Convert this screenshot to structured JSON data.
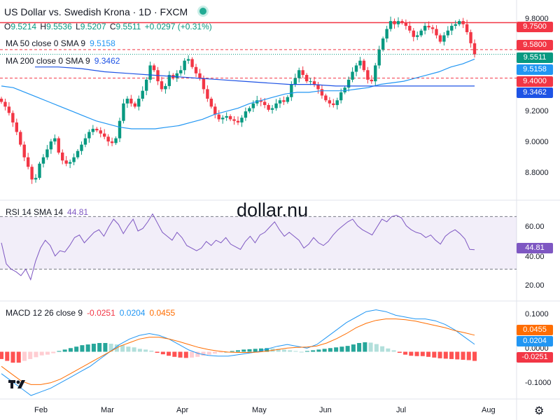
{
  "header": {
    "title": "US Dollar vs. Swedish Krona · 1D · FXCM",
    "ohlc": {
      "o_label": "O",
      "o": "9.5214",
      "h_label": "H",
      "h": "9.5536",
      "l_label": "L",
      "l": "9.5207",
      "c_label": "C",
      "c": "9.5511",
      "change": "+0.0297 (+0.31%)"
    }
  },
  "indicators": {
    "ma50": {
      "label": "MA 50 close 0 SMA 9",
      "value": "9.5158"
    },
    "ma200": {
      "label": "MA 200 close 0 SMA 9",
      "value": "9.3462"
    },
    "rsi": {
      "label": "RSI 14 SMA 14",
      "value": "44.81"
    },
    "macd": {
      "label": "MACD 12 26 close 9",
      "hist": "-0.0251",
      "macd": "0.0204",
      "signal": "0.0455"
    }
  },
  "watermark": "dollar.nu",
  "price_axis": {
    "ticks": [
      "9.8000",
      "9.2000",
      "9.0000",
      "8.8000"
    ]
  },
  "price_tags": [
    {
      "text": "9.7500",
      "color": "#f23645"
    },
    {
      "text": "9.5800",
      "color": "#f23645"
    },
    {
      "text": "9.5511",
      "color": "#089981"
    },
    {
      "text": "9.5158",
      "color": "#2196f3"
    },
    {
      "text": "9.4000",
      "color": "#f23645"
    },
    {
      "text": "9.3462",
      "color": "#1e53e5"
    }
  ],
  "rsi_axis": {
    "ticks": [
      "60.00",
      "40.00",
      "20.00"
    ],
    "tag": "44.81",
    "tag_color": "#7e57c2"
  },
  "macd_axis": {
    "ticks": [
      "0.1000",
      "0.0000",
      "-0.1000"
    ],
    "tags": [
      {
        "text": "0.0455",
        "color": "#ff6d00"
      },
      {
        "text": "0.0204",
        "color": "#2196f3"
      },
      {
        "text": "-0.0251",
        "color": "#f23645"
      }
    ]
  },
  "time_axis": {
    "months": [
      "Feb",
      "Mar",
      "Apr",
      "May",
      "Jun",
      "Jul",
      "Aug"
    ]
  },
  "colors": {
    "up": "#089981",
    "down": "#f23645",
    "ma50": "#2196f3",
    "ma200": "#1e53e5",
    "rsi": "#7e57c2",
    "signal": "#ff6d00"
  },
  "icons": {
    "logo": "tradingview-logo-icon",
    "settings": "gear-icon"
  },
  "chart_data": {
    "type": "candlestick",
    "symbol": "USDSEK",
    "interval": "1D",
    "ylim": [
      8.7,
      9.84
    ],
    "levels": [
      9.75,
      9.58,
      9.4
    ],
    "closes": [
      9.25,
      9.22,
      9.18,
      9.12,
      9.06,
      8.98,
      8.9,
      8.84,
      8.76,
      8.77,
      8.86,
      8.9,
      8.95,
      9.0,
      9.02,
      8.93,
      8.88,
      8.86,
      8.87,
      8.9,
      8.94,
      8.98,
      9.02,
      9.06,
      9.08,
      9.07,
      9.05,
      9.03,
      9.0,
      8.99,
      9.02,
      9.13,
      9.24,
      9.27,
      9.24,
      9.22,
      9.27,
      9.32,
      9.39,
      9.48,
      9.45,
      9.38,
      9.33,
      9.35,
      9.42,
      9.4,
      9.43,
      9.45,
      9.51,
      9.52,
      9.47,
      9.43,
      9.4,
      9.33,
      9.27,
      9.22,
      9.17,
      9.14,
      9.15,
      9.16,
      9.14,
      9.13,
      9.12,
      9.15,
      9.19,
      9.21,
      9.24,
      9.26,
      9.25,
      9.23,
      9.2,
      9.21,
      9.24,
      9.26,
      9.25,
      9.28,
      9.36,
      9.4,
      9.45,
      9.42,
      9.38,
      9.38,
      9.36,
      9.33,
      9.29,
      9.26,
      9.24,
      9.23,
      9.26,
      9.31,
      9.34,
      9.39,
      9.44,
      9.48,
      9.51,
      9.45,
      9.39,
      9.38,
      9.48,
      9.58,
      9.65,
      9.71,
      9.76,
      9.74,
      9.76,
      9.75,
      9.73,
      9.7,
      9.66,
      9.67,
      9.7,
      9.73,
      9.72,
      9.71,
      9.67,
      9.63,
      9.67,
      9.7,
      9.73,
      9.74,
      9.76,
      9.74,
      9.69,
      9.62,
      9.55
    ],
    "ma50": [
      9.35,
      9.34,
      9.31,
      9.28,
      9.25,
      9.22,
      9.19,
      9.16,
      9.13,
      9.11,
      9.09,
      9.08,
      9.08,
      9.08,
      9.09,
      9.1,
      9.12,
      9.14,
      9.17,
      9.19,
      9.21,
      9.24,
      9.26,
      9.28,
      9.3,
      9.31,
      9.31,
      9.32,
      9.32,
      9.32,
      9.33,
      9.34,
      9.36,
      9.37,
      9.38,
      9.4,
      9.42,
      9.44,
      9.47,
      9.49,
      9.52
    ],
    "ma200": [
      9.47,
      9.47,
      9.46,
      9.44,
      9.43,
      9.42,
      9.41,
      9.4,
      9.39,
      9.38,
      9.37,
      9.36,
      9.36,
      9.35,
      9.35,
      9.35,
      9.35,
      9.35,
      9.35,
      9.35
    ],
    "rsi": [
      50,
      34,
      30,
      28,
      25,
      30,
      22,
      36,
      46,
      52,
      48,
      40,
      44,
      43,
      48,
      54,
      56,
      50,
      54,
      58,
      60,
      55,
      62,
      68,
      64,
      57,
      63,
      68,
      59,
      61,
      66,
      72,
      65,
      58,
      55,
      52,
      58,
      54,
      48,
      46,
      44,
      46,
      51,
      48,
      52,
      50,
      54,
      49,
      47,
      45,
      51,
      55,
      50,
      56,
      58,
      62,
      66,
      60,
      55,
      58,
      55,
      52,
      46,
      49,
      54,
      50,
      48,
      51,
      56,
      60,
      63,
      66,
      68,
      63,
      60,
      58,
      56,
      62,
      68,
      66,
      70,
      71,
      69,
      63,
      60,
      58,
      57,
      54,
      56,
      52,
      49,
      55,
      58,
      60,
      57,
      53,
      45,
      44.81
    ],
    "macd_hist": [
      -0.02,
      -0.025,
      -0.03,
      -0.03,
      -0.025,
      -0.02,
      -0.015,
      -0.01,
      -0.008,
      -0.004,
      0.002,
      0.006,
      0.01,
      0.014,
      0.018,
      0.02,
      0.022,
      0.024,
      0.024,
      0.022,
      0.02,
      0.018,
      0.014,
      0.012,
      0.008,
      0.006,
      0.003,
      -0.003,
      -0.007,
      -0.011,
      -0.014,
      -0.016,
      -0.017,
      -0.016,
      -0.014,
      -0.011,
      -0.008,
      -0.005,
      -0.002,
      0.0,
      0.002,
      0.004,
      0.006,
      0.007,
      0.008,
      0.009,
      0.01,
      0.009,
      0.008,
      0.006,
      0.004,
      0.002,
      0.0,
      0.002,
      0.004,
      0.006,
      0.008,
      0.01,
      0.012,
      0.014,
      0.016,
      0.02,
      0.024,
      0.026,
      0.025,
      0.021,
      0.015,
      0.009,
      0.004,
      -0.003,
      -0.008,
      -0.011,
      -0.012,
      -0.012,
      -0.014,
      -0.016,
      -0.018,
      -0.019,
      -0.02,
      -0.021,
      -0.022,
      -0.023,
      -0.0251
    ],
    "macd_line": [
      -0.06,
      -0.08,
      -0.1,
      -0.12,
      -0.11,
      -0.1,
      -0.085,
      -0.07,
      -0.055,
      -0.04,
      -0.02,
      0.0,
      0.02,
      0.035,
      0.045,
      0.05,
      0.045,
      0.035,
      0.02,
      0.005,
      -0.005,
      -0.01,
      -0.012,
      -0.012,
      -0.008,
      -0.004,
      0.0,
      0.008,
      0.015,
      0.02,
      0.015,
      0.01,
      0.02,
      0.04,
      0.06,
      0.08,
      0.095,
      0.11,
      0.115,
      0.11,
      0.1,
      0.095,
      0.09,
      0.09,
      0.085,
      0.075,
      0.06,
      0.04,
      0.0204
    ],
    "macd_signal": [
      -0.04,
      -0.06,
      -0.08,
      -0.09,
      -0.09,
      -0.085,
      -0.075,
      -0.06,
      -0.045,
      -0.03,
      -0.015,
      0.0,
      0.015,
      0.025,
      0.035,
      0.04,
      0.04,
      0.035,
      0.028,
      0.02,
      0.012,
      0.006,
      0.002,
      -0.001,
      -0.002,
      -0.002,
      -0.001,
      0.002,
      0.006,
      0.01,
      0.012,
      0.013,
      0.016,
      0.024,
      0.036,
      0.05,
      0.066,
      0.078,
      0.086,
      0.09,
      0.09,
      0.088,
      0.084,
      0.078,
      0.072,
      0.066,
      0.058,
      0.052,
      0.0455
    ]
  }
}
